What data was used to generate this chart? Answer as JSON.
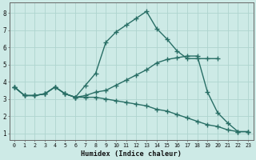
{
  "line1_x": [
    0,
    1,
    2,
    3,
    4,
    5,
    6,
    7,
    8,
    9,
    10,
    11,
    12,
    13,
    14,
    15,
    16,
    17,
    18,
    19,
    20
  ],
  "line1_y": [
    3.7,
    3.2,
    3.2,
    3.3,
    3.7,
    3.3,
    3.1,
    3.8,
    4.5,
    6.3,
    6.9,
    7.3,
    7.7,
    8.1,
    7.1,
    6.5,
    5.8,
    5.35,
    5.35,
    5.35,
    5.35
  ],
  "line2_x": [
    0,
    1,
    2,
    3,
    4,
    5,
    6,
    7,
    8,
    9,
    10,
    11,
    12,
    13,
    14,
    15,
    16,
    17,
    18,
    19,
    20,
    21,
    22,
    23
  ],
  "line2_y": [
    3.7,
    3.2,
    3.2,
    3.3,
    3.7,
    3.3,
    3.1,
    3.2,
    3.4,
    3.5,
    3.8,
    4.1,
    4.4,
    4.7,
    5.1,
    5.3,
    5.4,
    5.5,
    5.5,
    3.4,
    2.2,
    1.6,
    1.1,
    1.1
  ],
  "line3_x": [
    0,
    1,
    2,
    3,
    4,
    5,
    6,
    7,
    8,
    9,
    10,
    11,
    12,
    13,
    14,
    15,
    16,
    17,
    18,
    19,
    20,
    21,
    22,
    23
  ],
  "line3_y": [
    3.7,
    3.2,
    3.2,
    3.3,
    3.7,
    3.3,
    3.1,
    3.1,
    3.1,
    3.0,
    2.9,
    2.8,
    2.7,
    2.6,
    2.4,
    2.3,
    2.1,
    1.9,
    1.7,
    1.5,
    1.4,
    1.2,
    1.1,
    1.1
  ],
  "color": "#286e65",
  "bg_color": "#cdeae6",
  "grid_color": "#aed4cf",
  "xlabel": "Humidex (Indice chaleur)",
  "xlim": [
    -0.5,
    23.5
  ],
  "ylim": [
    0.6,
    8.6
  ],
  "yticks": [
    1,
    2,
    3,
    4,
    5,
    6,
    7,
    8
  ],
  "xticks": [
    0,
    1,
    2,
    3,
    4,
    5,
    6,
    7,
    8,
    9,
    10,
    11,
    12,
    13,
    14,
    15,
    16,
    17,
    18,
    19,
    20,
    21,
    22,
    23
  ],
  "marker": "+",
  "markersize": 4,
  "linewidth": 1.0
}
